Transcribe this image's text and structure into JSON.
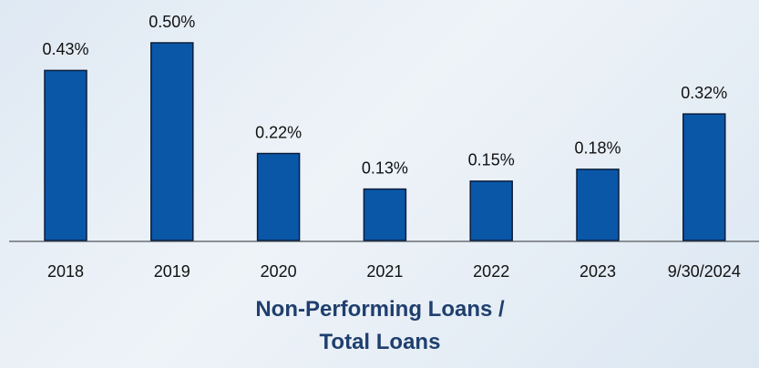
{
  "chart_data": {
    "type": "bar",
    "title": "Non-Performing Loans / Total Loans",
    "categories": [
      "2018",
      "2019",
      "2020",
      "2021",
      "2022",
      "2023",
      "9/30/2024"
    ],
    "values": [
      0.43,
      0.5,
      0.22,
      0.13,
      0.15,
      0.18,
      0.32
    ],
    "value_labels": [
      "0.43%",
      "0.50%",
      "0.22%",
      "0.13%",
      "0.15%",
      "0.18%",
      "0.32%"
    ],
    "color": "#0a57a8"
  }
}
